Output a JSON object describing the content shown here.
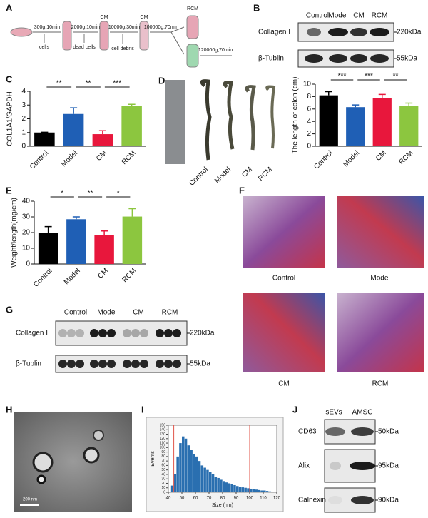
{
  "flow": {
    "label": "A",
    "texts": [
      "300g,10min",
      "cells",
      "2000g,10min",
      "dead cells",
      "CM",
      "10000g,30min",
      "cell debris",
      "CM",
      "100000g,70min",
      "RCM",
      "120000g,70min"
    ]
  },
  "blot_B": {
    "label": "B",
    "lanes": [
      "Control",
      "Model",
      "CM",
      "RCM"
    ],
    "rows": [
      {
        "name": "Collagen I",
        "size": "220kDa"
      },
      {
        "name": "β-Tublin",
        "size": "55kDa"
      }
    ]
  },
  "colon_photo": {
    "labels": [
      "Control",
      "Model",
      "CM",
      "RCM"
    ]
  },
  "histology": {
    "label": "F",
    "captions": [
      "Control",
      "Model",
      "CM",
      "RCM"
    ]
  },
  "blot_G": {
    "label": "G",
    "lanes": [
      "Control",
      "Model",
      "CM",
      "RCM"
    ],
    "rows": [
      {
        "name": "Collagen I",
        "size": "220kDa"
      },
      {
        "name": "β-Tublin",
        "size": "55kDa"
      }
    ]
  },
  "tem": {
    "label": "H",
    "scale": "200 nm"
  },
  "blot_J": {
    "label": "J",
    "lanes": [
      "sEVs",
      "AMSC"
    ],
    "rows": [
      {
        "name": "CD63",
        "size": "50kDa"
      },
      {
        "name": "Alix",
        "size": "95kDa"
      },
      {
        "name": "Calnexin",
        "size": "90kDa"
      }
    ]
  },
  "chart_data": [
    {
      "type": "bar",
      "panel": "C",
      "ylabel": "COL1A1/GAPDH",
      "categories": [
        "Control",
        "Model",
        "CM",
        "RCM"
      ],
      "values": [
        1.0,
        2.35,
        0.88,
        2.93
      ],
      "errors": [
        0.02,
        0.45,
        0.25,
        0.12
      ],
      "colors": [
        "#000000",
        "#1f5fb5",
        "#e8173c",
        "#8cc63f"
      ],
      "ylim": [
        0,
        4
      ],
      "yticks": [
        0,
        1,
        2,
        3,
        4
      ],
      "significance": [
        "**",
        "**",
        "***"
      ]
    },
    {
      "type": "bar",
      "panel": "D",
      "ylabel": "The length of colon (cm)",
      "categories": [
        "Control",
        "Model",
        "CM",
        "RCM"
      ],
      "values": [
        8.2,
        6.3,
        7.8,
        6.5
      ],
      "errors": [
        0.6,
        0.35,
        0.55,
        0.45
      ],
      "colors": [
        "#000000",
        "#1f5fb5",
        "#e8173c",
        "#8cc63f"
      ],
      "ylim": [
        0,
        10
      ],
      "yticks": [
        0,
        2,
        4,
        6,
        8,
        10
      ],
      "significance": [
        "***",
        "***",
        "**"
      ]
    },
    {
      "type": "bar",
      "panel": "E",
      "ylabel": "Weight/length(mg/cm)",
      "categories": [
        "Control",
        "Model",
        "CM",
        "RCM"
      ],
      "values": [
        19.8,
        28.5,
        18.5,
        30.2
      ],
      "errors": [
        4,
        1.5,
        2.5,
        5
      ],
      "colors": [
        "#000000",
        "#1f5fb5",
        "#e8173c",
        "#8cc63f"
      ],
      "ylim": [
        0,
        40
      ],
      "yticks": [
        0,
        10,
        20,
        30,
        40
      ],
      "significance": [
        "*",
        "**",
        "*"
      ]
    },
    {
      "type": "histogram",
      "panel": "I",
      "xlabel": "Size (nm)",
      "ylabel": "Events",
      "color": "#2a6fb0",
      "bins": [
        42,
        44,
        46,
        48,
        50,
        52,
        54,
        56,
        58,
        60,
        62,
        64,
        66,
        68,
        70,
        72,
        74,
        76,
        78,
        80,
        82,
        84,
        86,
        88,
        90,
        92,
        94,
        96,
        98,
        100,
        102,
        104,
        106,
        108,
        110,
        112,
        114,
        116
      ],
      "counts": [
        15,
        40,
        80,
        110,
        125,
        120,
        105,
        95,
        85,
        80,
        70,
        60,
        55,
        50,
        45,
        40,
        35,
        32,
        28,
        25,
        22,
        20,
        18,
        16,
        14,
        12,
        11,
        10,
        9,
        8,
        7,
        6,
        5,
        4,
        4,
        3,
        2
      ],
      "reference_lines": [
        44,
        100
      ],
      "reference_color": "#e0554a",
      "xlim": [
        40,
        120
      ],
      "xticks": [
        40,
        50,
        60,
        70,
        80,
        90,
        100,
        110,
        120
      ],
      "ylim": [
        0,
        150
      ],
      "yticks": [
        0,
        10,
        20,
        30,
        40,
        50,
        60,
        70,
        80,
        90,
        100,
        110,
        120,
        130,
        140,
        150
      ]
    }
  ]
}
